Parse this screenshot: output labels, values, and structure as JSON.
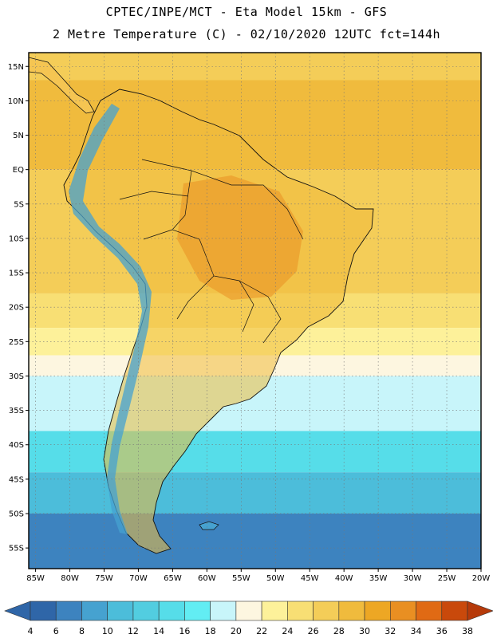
{
  "title": {
    "line1": "CPTEC/INPE/MCT  -   Eta Model 15km  -  GFS",
    "line2": "2 Metre Temperature (C) - 02/10/2020 12UTC fct=144h"
  },
  "map": {
    "lon_range": [
      -86,
      -20
    ],
    "lat_range": [
      -58,
      17
    ],
    "lat_ticks": [
      {
        "value": 15,
        "label": "15N"
      },
      {
        "value": 10,
        "label": "10N"
      },
      {
        "value": 5,
        "label": "5N"
      },
      {
        "value": 0,
        "label": "EQ"
      },
      {
        "value": -5,
        "label": "5S"
      },
      {
        "value": -10,
        "label": "10S"
      },
      {
        "value": -15,
        "label": "15S"
      },
      {
        "value": -20,
        "label": "20S"
      },
      {
        "value": -25,
        "label": "25S"
      },
      {
        "value": -30,
        "label": "30S"
      },
      {
        "value": -35,
        "label": "35S"
      },
      {
        "value": -40,
        "label": "40S"
      },
      {
        "value": -45,
        "label": "45S"
      },
      {
        "value": -50,
        "label": "50S"
      },
      {
        "value": -55,
        "label": "55S"
      }
    ],
    "lon_ticks": [
      {
        "value": -85,
        "label": "85W"
      },
      {
        "value": -80,
        "label": "80W"
      },
      {
        "value": -75,
        "label": "75W"
      },
      {
        "value": -70,
        "label": "70W"
      },
      {
        "value": -65,
        "label": "65W"
      },
      {
        "value": -60,
        "label": "60W"
      },
      {
        "value": -55,
        "label": "55W"
      },
      {
        "value": -50,
        "label": "50W"
      },
      {
        "value": -45,
        "label": "45W"
      },
      {
        "value": -40,
        "label": "40W"
      },
      {
        "value": -35,
        "label": "35W"
      },
      {
        "value": -30,
        "label": "30W"
      },
      {
        "value": -25,
        "label": "25W"
      },
      {
        "value": -20,
        "label": "20W"
      }
    ],
    "temperature_bands": [
      {
        "lat_min": 13,
        "lat_max": 17,
        "temp": 26
      },
      {
        "lat_min": 0,
        "lat_max": 13,
        "temp": 28
      },
      {
        "lat_min": -18,
        "lat_max": 0,
        "temp": 26
      },
      {
        "lat_min": -23,
        "lat_max": -18,
        "temp": 24
      },
      {
        "lat_min": -27,
        "lat_max": -23,
        "temp": 22
      },
      {
        "lat_min": -30,
        "lat_max": -27,
        "temp": 20
      },
      {
        "lat_min": -38,
        "lat_max": -30,
        "temp": 18
      },
      {
        "lat_min": -44,
        "lat_max": -38,
        "temp": 14
      },
      {
        "lat_min": -50,
        "lat_max": -44,
        "temp": 10
      },
      {
        "lat_min": -58,
        "lat_max": -50,
        "temp": 6
      }
    ]
  },
  "colorbar": {
    "labels": [
      "4",
      "6",
      "8",
      "10",
      "12",
      "14",
      "16",
      "18",
      "20",
      "22",
      "24",
      "26",
      "28",
      "30",
      "32",
      "34",
      "36",
      "38"
    ],
    "colors": [
      "#2f66a8",
      "#2f66a8",
      "#3d83bf",
      "#46a2d0",
      "#4cbdda",
      "#52cde0",
      "#56dde9",
      "#62edf3",
      "#c8f5fa",
      "#fdf6e0",
      "#fdf19a",
      "#f8df74",
      "#f4cd58",
      "#f0bb3d",
      "#eda724",
      "#e98f22",
      "#e06a14",
      "#c9490b",
      "#b63a0a"
    ]
  }
}
